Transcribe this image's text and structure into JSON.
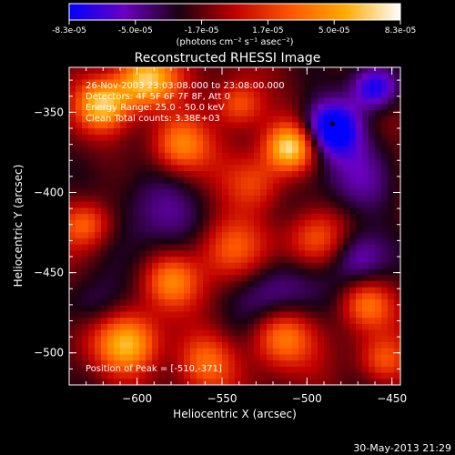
{
  "colorbar": {
    "ticks": [
      "-8.3e-05",
      "-5.0e-05",
      "-1.7e-05",
      "1.7e-05",
      "5.0e-05",
      "8.3e-05"
    ],
    "unit_label": "(photons cm⁻² s⁻¹ asec⁻²)",
    "range": [
      -8.3e-05,
      8.3e-05
    ],
    "colormap": [
      "#0000ff",
      "#6a00c0",
      "#1a0010",
      "#c00000",
      "#ff5500",
      "#ffaa00",
      "#ffffff"
    ]
  },
  "chart_data": {
    "type": "heatmap",
    "title": "Reconstructed RHESSI Image",
    "xlabel": "Heliocentric X (arcsec)",
    "ylabel": "Heliocentric Y (arcsec)",
    "xlim": [
      -640,
      -445
    ],
    "ylim": [
      -520,
      -322
    ],
    "xticks": [
      -600,
      -550,
      -500,
      -450
    ],
    "yticks": [
      -350,
      -400,
      -450,
      -500
    ],
    "xtick_labels": [
      "−600",
      "−550",
      "−500",
      "−450"
    ],
    "ytick_labels": [
      "−350",
      "−400",
      "−450",
      "−500"
    ],
    "annotations": [
      "26-Nov-2003 23:03:08.000 to 23:08:00.000",
      "Detectors: 4F 5F 6F 7F 8F, Att 0",
      "Energy Range: 25.0 - 50.0 keV",
      "Clean     Total counts: 3.38E+03"
    ],
    "peak_label": "Position of Peak = [-510,-371]",
    "peak_position": [
      -510,
      -371
    ],
    "marked_point": [
      -485,
      -357
    ],
    "intensity_sources": [
      {
        "x": -595,
        "y": -330,
        "amp": 0.95,
        "sigma": 12
      },
      {
        "x": -620,
        "y": -345,
        "amp": 0.85,
        "sigma": 11
      },
      {
        "x": -575,
        "y": -370,
        "amp": 0.75,
        "sigma": 12
      },
      {
        "x": -540,
        "y": -345,
        "amp": 0.6,
        "sigma": 10
      },
      {
        "x": -510,
        "y": -372,
        "amp": 1.0,
        "sigma": 10
      },
      {
        "x": -530,
        "y": -395,
        "amp": 0.45,
        "sigma": 12
      },
      {
        "x": -485,
        "y": -360,
        "amp": -1.0,
        "sigma": 12
      },
      {
        "x": -460,
        "y": -335,
        "amp": -0.85,
        "sigma": 10
      },
      {
        "x": -470,
        "y": -395,
        "amp": -0.35,
        "sigma": 18
      },
      {
        "x": -545,
        "y": -435,
        "amp": 0.55,
        "sigma": 14
      },
      {
        "x": -495,
        "y": -430,
        "amp": 0.5,
        "sigma": 12
      },
      {
        "x": -630,
        "y": -420,
        "amp": 0.55,
        "sigma": 10
      },
      {
        "x": -590,
        "y": -410,
        "amp": -0.45,
        "sigma": 18
      },
      {
        "x": -580,
        "y": -455,
        "amp": 0.6,
        "sigma": 11
      },
      {
        "x": -605,
        "y": -495,
        "amp": 0.9,
        "sigma": 13
      },
      {
        "x": -560,
        "y": -505,
        "amp": 0.55,
        "sigma": 12
      },
      {
        "x": -515,
        "y": -490,
        "amp": 0.65,
        "sigma": 12
      },
      {
        "x": -465,
        "y": -470,
        "amp": 0.55,
        "sigma": 10
      },
      {
        "x": -455,
        "y": -505,
        "amp": 0.5,
        "sigma": 10
      },
      {
        "x": -520,
        "y": -460,
        "amp": -0.45,
        "sigma": 16
      },
      {
        "x": -470,
        "y": -440,
        "amp": -0.5,
        "sigma": 12
      },
      {
        "x": -625,
        "y": -470,
        "amp": -0.3,
        "sigma": 12
      }
    ]
  },
  "footer": {
    "date": "30-May-2013 21:29"
  }
}
